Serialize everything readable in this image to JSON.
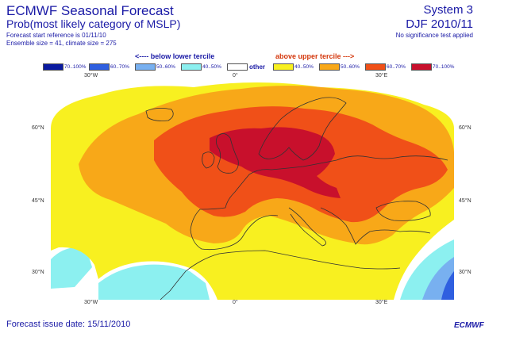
{
  "header": {
    "title": "ECMWF Seasonal Forecast",
    "subtitle": "Prob(most likely category of MSLP)",
    "start_reference": "Forecast start reference is 01/11/10",
    "ensemble": "Ensemble size = 41, climate size = 275",
    "system": "System 3",
    "period": "DJF 2010/11",
    "significance": "No significance test applied"
  },
  "legend": {
    "below_header": "<---- below lower tercile",
    "above_header": "above upper tercile --->",
    "other_label": "other",
    "items": [
      {
        "label": "70..100%",
        "color": "#0a1aa0"
      },
      {
        "label": "60..70%",
        "color": "#2f5fe0"
      },
      {
        "label": "50..60%",
        "color": "#78b0f0"
      },
      {
        "label": "40..50%",
        "color": "#8cf0f0"
      },
      {
        "label": "",
        "color": "#ffffff"
      },
      {
        "label": "40..50%",
        "color": "#f8f020"
      },
      {
        "label": "50..60%",
        "color": "#f8a818"
      },
      {
        "label": "60..70%",
        "color": "#f05018"
      },
      {
        "label": "70..100%",
        "color": "#c8102c"
      }
    ]
  },
  "map": {
    "lon_labels": [
      "30°W",
      "0°",
      "30°E"
    ],
    "lat_labels": [
      "60°N",
      "45°N",
      "30°N"
    ],
    "background": "#ffffff"
  },
  "footer": {
    "issue_date": "Forecast issue date: 15/11/2010",
    "logo_text": "ECMWF"
  }
}
